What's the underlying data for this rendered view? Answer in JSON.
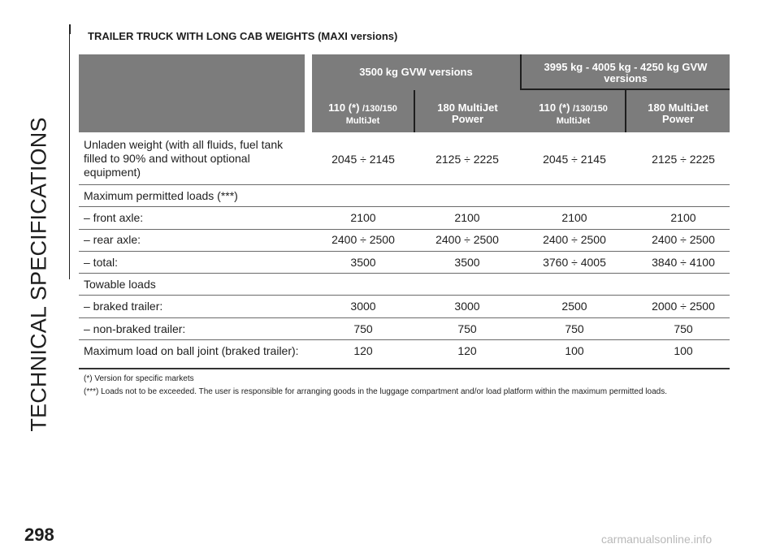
{
  "side_title": "TECHNICAL SPECIFICATIONS",
  "heading": "TRAILER TRUCK WITH LONG CAB WEIGHTS (MAXI versions)",
  "table": {
    "group_headers": [
      "3500 kg GVW versions",
      "3995 kg - 4005 kg - 4250 kg GVW versions"
    ],
    "columns": [
      {
        "main": "110 (*)",
        "suffix": "/130/150",
        "sub": "MultiJet"
      },
      {
        "main": "180 MultiJet",
        "suffix": "",
        "sub": "Power"
      },
      {
        "main": "110 (*)",
        "suffix": "/130/150",
        "sub": "MultiJet"
      },
      {
        "main": "180 MultiJet",
        "suffix": "",
        "sub": "Power"
      }
    ],
    "rows": [
      {
        "label": "Unladen weight (with all fluids, fuel tank filled to 90% and without optional equipment)",
        "values": [
          "2045 ÷ 2145",
          "2125 ÷ 2225",
          "2045 ÷ 2145",
          "2125 ÷ 2225"
        ]
      },
      {
        "label": "Maximum permitted loads (***)",
        "values": [
          "",
          "",
          "",
          ""
        ]
      },
      {
        "label": "– front axle:",
        "values": [
          "2100",
          "2100",
          "2100",
          "2100"
        ]
      },
      {
        "label": "– rear axle:",
        "values": [
          "2400 ÷ 2500",
          "2400 ÷ 2500",
          "2400 ÷ 2500",
          "2400 ÷ 2500"
        ]
      },
      {
        "label": "– total:",
        "values": [
          "3500",
          "3500",
          "3760 ÷ 4005",
          "3840 ÷ 4100"
        ]
      },
      {
        "label": "Towable loads",
        "values": [
          "",
          "",
          "",
          ""
        ]
      },
      {
        "label": "– braked trailer:",
        "values": [
          "3000",
          "3000",
          "2500",
          "2000 ÷ 2500"
        ]
      },
      {
        "label": "– non-braked trailer:",
        "values": [
          "750",
          "750",
          "750",
          "750"
        ]
      },
      {
        "label": "Maximum load on ball joint (braked trailer):",
        "values": [
          "120",
          "120",
          "100",
          "100"
        ]
      }
    ]
  },
  "footnotes": [
    "(*) Version for specific markets",
    "(***) Loads not to be exceeded. The user is responsible for arranging goods in the luggage compartment and/or load platform within the maximum permitted loads."
  ],
  "page_number": "298",
  "watermark": "carmanualsonline.info"
}
